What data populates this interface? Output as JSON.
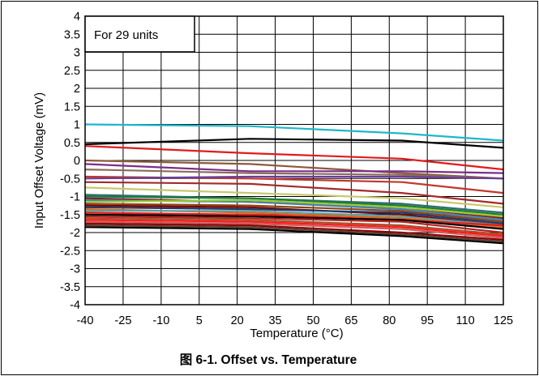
{
  "chart_data": {
    "type": "line",
    "caption": "图 6-1. Offset vs. Temperature",
    "xlabel": "Temperature (°C)",
    "ylabel": "Input Offset Voltage (mV)",
    "annotation": "For 29 units",
    "xlim": [
      -40,
      125
    ],
    "ylim": [
      -4,
      4
    ],
    "x_ticks": [
      "-40",
      "-25",
      "-10",
      "5",
      "20",
      "35",
      "50",
      "65",
      "80",
      "95",
      "110",
      "125"
    ],
    "y_ticks": [
      "4",
      "3.5",
      "3",
      "2.5",
      "2",
      "1.5",
      "1",
      "0.5",
      "0",
      "-0.5",
      "-1",
      "-1.5",
      "-2",
      "-2.5",
      "-3",
      "-3.5",
      "-4"
    ],
    "grid": true,
    "x": [
      -40,
      25,
      85,
      125
    ],
    "series": [
      {
        "color": "#1fb7c9",
        "values": [
          1.0,
          0.95,
          0.75,
          0.55
        ]
      },
      {
        "color": "#000000",
        "values": [
          0.45,
          0.6,
          0.55,
          0.35
        ]
      },
      {
        "color": "#e31a1c",
        "values": [
          0.4,
          0.2,
          0.05,
          -0.25
        ]
      },
      {
        "color": "#8c5a3c",
        "values": [
          0.0,
          -0.1,
          -0.35,
          -0.5
        ]
      },
      {
        "color": "#7b2d8b",
        "values": [
          -0.1,
          -0.3,
          -0.3,
          -0.35
        ]
      },
      {
        "color": "#8b6b5a",
        "values": [
          -0.25,
          -0.35,
          -0.4,
          -0.5
        ]
      },
      {
        "color": "#c0392b",
        "values": [
          -0.45,
          -0.5,
          -0.6,
          -0.9
        ]
      },
      {
        "color": "#6a3d9a",
        "values": [
          -0.5,
          -0.45,
          -0.45,
          -0.5
        ]
      },
      {
        "color": "#a52a2a",
        "values": [
          -0.6,
          -0.65,
          -0.9,
          -1.2
        ]
      },
      {
        "color": "#c8c86e",
        "values": [
          -0.75,
          -0.9,
          -1.05,
          -1.3
        ]
      },
      {
        "color": "#2f6f6f",
        "values": [
          -0.95,
          -1.05,
          -1.2,
          -1.45
        ]
      },
      {
        "color": "#1e7b3c",
        "values": [
          -1.0,
          -1.05,
          -1.25,
          -1.5
        ]
      },
      {
        "color": "#8b1a1a",
        "values": [
          -1.05,
          -1.15,
          -1.3,
          -1.6
        ]
      },
      {
        "color": "#4682b4",
        "values": [
          -1.1,
          -1.15,
          -1.35,
          -1.65
        ]
      },
      {
        "color": "#9acd32",
        "values": [
          -1.15,
          -1.1,
          -1.3,
          -1.55
        ]
      },
      {
        "color": "#8b4513",
        "values": [
          -1.2,
          -1.25,
          -1.4,
          -1.7
        ]
      },
      {
        "color": "#800000",
        "values": [
          -1.25,
          -1.3,
          -1.5,
          -1.8
        ]
      },
      {
        "color": "#1a3c6e",
        "values": [
          -1.3,
          -1.35,
          -1.45,
          -1.75
        ]
      },
      {
        "color": "#d2691e",
        "values": [
          -1.35,
          -1.45,
          -1.6,
          -1.85
        ]
      },
      {
        "color": "#5f9ea0",
        "values": [
          -1.4,
          -1.4,
          -1.55,
          -1.8
        ]
      },
      {
        "color": "#e31a1c",
        "values": [
          -1.45,
          -1.5,
          -1.65,
          -1.8
        ]
      },
      {
        "color": "#000000",
        "values": [
          -1.5,
          -1.55,
          -1.65,
          -1.9
        ]
      },
      {
        "color": "#b22222",
        "values": [
          -1.55,
          -1.6,
          -1.7,
          -2.0
        ]
      },
      {
        "color": "#a0522d",
        "values": [
          -1.6,
          -1.65,
          -1.8,
          -2.05
        ]
      },
      {
        "color": "#ff1a1a",
        "values": [
          -1.65,
          -1.7,
          -1.85,
          -2.1
        ]
      },
      {
        "color": "#cd5c5c",
        "values": [
          -1.7,
          -1.75,
          -1.9,
          -2.15
        ]
      },
      {
        "color": "#8b0000",
        "values": [
          -1.75,
          -1.8,
          -2.0,
          -2.2
        ]
      },
      {
        "color": "#5c4033",
        "values": [
          -1.8,
          -1.85,
          -2.05,
          -2.25
        ]
      },
      {
        "color": "#000000",
        "values": [
          -1.85,
          -1.9,
          -2.1,
          -2.3
        ]
      }
    ]
  }
}
